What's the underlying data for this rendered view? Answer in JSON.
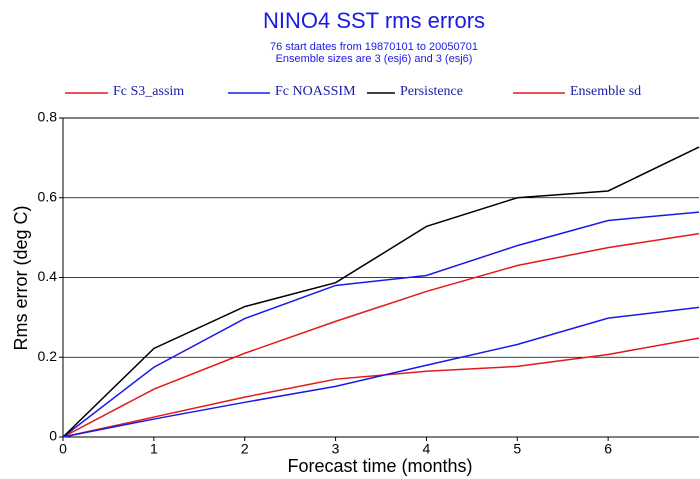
{
  "chart_data": {
    "type": "line",
    "title": "NINO4 SST rms errors",
    "subtitle": [
      "76 start dates from 19870101 to 20050701",
      "Ensemble sizes are  3 (esj6)  and  3 (esj6)"
    ],
    "xlabel": "Forecast time (months)",
    "ylabel": "Rms error (deg C)",
    "x": [
      0,
      1,
      2,
      3,
      4,
      5,
      6,
      7
    ],
    "xlim": [
      0,
      7
    ],
    "xticks": [
      0,
      1,
      2,
      3,
      4,
      5,
      6
    ],
    "ylim": [
      0,
      0.8
    ],
    "yticks": [
      0,
      0.2,
      0.4,
      0.6,
      0.8
    ],
    "grid": true,
    "series": [
      {
        "name": "Fc S3_assim",
        "color": "#e31a1c",
        "values": [
          0,
          0.12,
          0.21,
          0.29,
          0.365,
          0.43,
          0.475,
          0.51
        ]
      },
      {
        "name": "Fc NOASSIM",
        "color": "#1a1ae6",
        "values": [
          0,
          0.175,
          0.297,
          0.38,
          0.405,
          0.48,
          0.543,
          0.564
        ]
      },
      {
        "name": "Persistence",
        "color": "#000000",
        "values": [
          0,
          0.222,
          0.327,
          0.387,
          0.528,
          0.6,
          0.617,
          0.727
        ]
      },
      {
        "name": "Ensemble sd",
        "color": "#e31a1c",
        "values": [
          0,
          0.05,
          0.1,
          0.145,
          0.165,
          0.177,
          0.207,
          0.248
        ]
      },
      {
        "color": "#1a1ae6",
        "values": [
          0,
          0.045,
          0.087,
          0.127,
          0.18,
          0.232,
          0.298,
          0.325
        ]
      }
    ]
  }
}
